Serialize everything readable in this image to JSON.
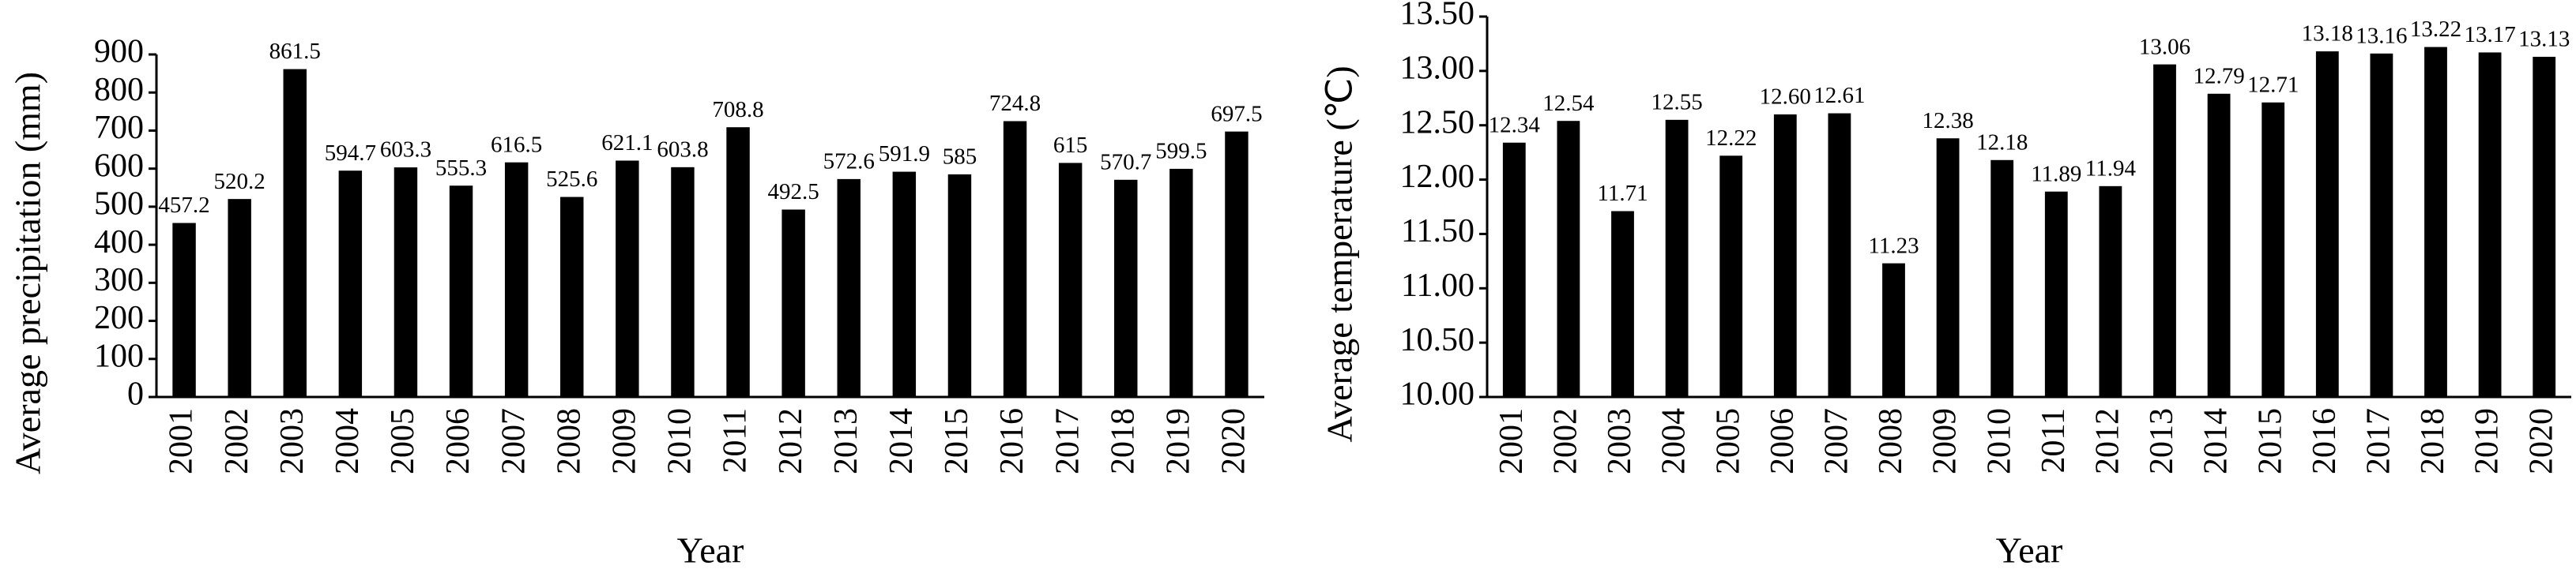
{
  "chart_data": [
    {
      "type": "bar",
      "y_label": "Average precipitation (mm)",
      "x_label": "Year",
      "categories": [
        "2001",
        "2002",
        "2003",
        "2004",
        "2005",
        "2006",
        "2007",
        "2008",
        "2009",
        "2010",
        "2011",
        "2012",
        "2013",
        "2014",
        "2015",
        "2016",
        "2017",
        "2018",
        "2019",
        "2020"
      ],
      "values": [
        457.2,
        520.2,
        861.5,
        594.7,
        603.3,
        555.3,
        616.5,
        525.6,
        621.1,
        603.8,
        708.8,
        492.5,
        572.6,
        591.9,
        585,
        724.8,
        615,
        570.7,
        599.5,
        697.5
      ],
      "color": "#000000",
      "ylim": [
        0,
        900
      ],
      "yticks": [
        0,
        100,
        200,
        300,
        400,
        500,
        600,
        700,
        800,
        900
      ]
    },
    {
      "type": "bar",
      "y_label": "Average temperature (℃)",
      "x_label": "Year",
      "categories": [
        "2001",
        "2002",
        "2003",
        "2004",
        "2005",
        "2006",
        "2007",
        "2008",
        "2009",
        "2010",
        "2011",
        "2012",
        "2013",
        "2014",
        "2015",
        "2016",
        "2017",
        "2018",
        "2019",
        "2020"
      ],
      "values": [
        12.34,
        12.54,
        11.71,
        12.55,
        12.22,
        12.6,
        12.61,
        11.23,
        12.38,
        12.18,
        11.89,
        11.94,
        13.06,
        12.79,
        12.71,
        13.18,
        13.16,
        13.22,
        13.17,
        13.13
      ],
      "value_labels": [
        "12.34",
        "12.54",
        "11.71",
        "12.55",
        "12.22",
        "12.60",
        "12.61",
        "11.23",
        "12.38",
        "12.18",
        "11.89",
        "11.94",
        "13.06",
        "12.79",
        "12.71",
        "13.18",
        "13.16",
        "13.22",
        "13.17",
        "13.13"
      ],
      "color": "#000000",
      "ylim": [
        10,
        13.5
      ],
      "yticks": [
        {
          "value": 10,
          "label": "10.00"
        },
        {
          "value": 10.5,
          "label": "10.50"
        },
        {
          "value": 11,
          "label": "11.00"
        },
        {
          "value": 11.5,
          "label": "11.50"
        },
        {
          "value": 12,
          "label": "12.00"
        },
        {
          "value": 12.5,
          "label": "12.50"
        },
        {
          "value": 13,
          "label": "13.00"
        },
        {
          "value": 13.5,
          "label": "13.50"
        }
      ]
    }
  ]
}
